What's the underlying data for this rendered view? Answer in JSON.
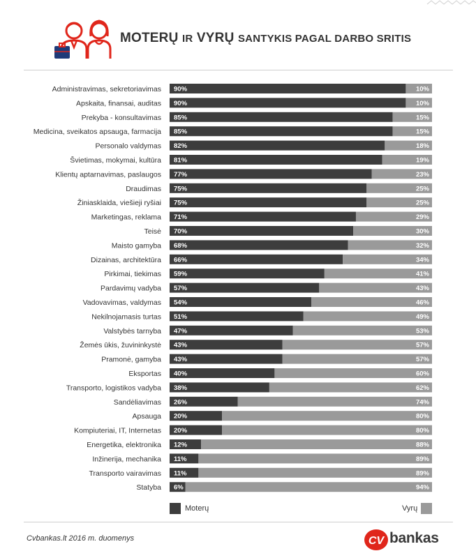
{
  "header": {
    "title_parts": [
      "MOTERŲ ",
      "IR",
      " VYRŲ ",
      "SANTYKIS PAGAL DARBO SRITIS"
    ]
  },
  "colors": {
    "women": "#3d3d3d",
    "men": "#9a9a9a",
    "accent": "#e0261b"
  },
  "chart_data": {
    "type": "bar",
    "stacked": true,
    "orientation": "horizontal",
    "categories": [
      "Administravimas, sekretoriavimas",
      "Apskaita, finansai, auditas",
      "Prekyba - konsultavimas",
      "Medicina, sveikatos apsauga, farmacija",
      "Personalo valdymas",
      "Švietimas, mokymai, kultūra",
      "Klientų aptarnavimas, paslaugos",
      "Draudimas",
      "Žiniasklaida, viešieji ryšiai",
      "Marketingas, reklama",
      "Teisė",
      "Maisto gamyba",
      "Dizainas, architektūra",
      "Pirkimai, tiekimas",
      "Pardavimų vadyba",
      "Vadovavimas, valdymas",
      "Nekilnojamasis turtas",
      "Valstybės tarnyba",
      "Žemės ūkis, žuvininkystė",
      "Pramonė, gamyba",
      "Eksportas",
      "Transporto, logistikos vadyba",
      "Sandėliavimas",
      "Apsauga",
      "Kompiuteriai, IT, Internetas",
      "Energetika, elektronika",
      "Inžinerija, mechanika",
      "Transporto vairavimas",
      "Statyba"
    ],
    "series": [
      {
        "name": "Moterų",
        "values": [
          90,
          90,
          85,
          85,
          82,
          81,
          77,
          75,
          75,
          71,
          70,
          68,
          66,
          59,
          57,
          54,
          51,
          47,
          43,
          43,
          40,
          38,
          26,
          20,
          20,
          12,
          11,
          11,
          6
        ],
        "labels": [
          "90%",
          "90%",
          "85%",
          "85%",
          "82%",
          "81%",
          "77%",
          "75%",
          "75%",
          "71%",
          "70%",
          "68%",
          "66%",
          "59%",
          "57%",
          "54%",
          "51%",
          "47%",
          "43%",
          "43%",
          "40%",
          "38%",
          "26%",
          "20%",
          "20%",
          "12%",
          "11%",
          "11%",
          "6%"
        ]
      },
      {
        "name": "Vyrų",
        "values": [
          10,
          10,
          15,
          15,
          18,
          19,
          23,
          25,
          25,
          29,
          30,
          32,
          34,
          41,
          43,
          46,
          49,
          53,
          57,
          57,
          60,
          62,
          74,
          80,
          80,
          88,
          89,
          89,
          94
        ],
        "labels": [
          "10%",
          "10%",
          "15%",
          "15%",
          "18%",
          "19%",
          "23%",
          "25%",
          "25%",
          "29%",
          "30%",
          "32%",
          "34%",
          "41%",
          "43%",
          "46%",
          "49%",
          "53%",
          "57%",
          "57%",
          "60%",
          "62%",
          "74%",
          "80%",
          "80%",
          "88%",
          "89%",
          "89%",
          "94%"
        ]
      }
    ],
    "xlim": [
      0,
      100
    ]
  },
  "footer": {
    "source": "Cvbankas.lt 2016 m. duomenys",
    "logo_cv": "CV",
    "logo_bankas": "bankas"
  }
}
